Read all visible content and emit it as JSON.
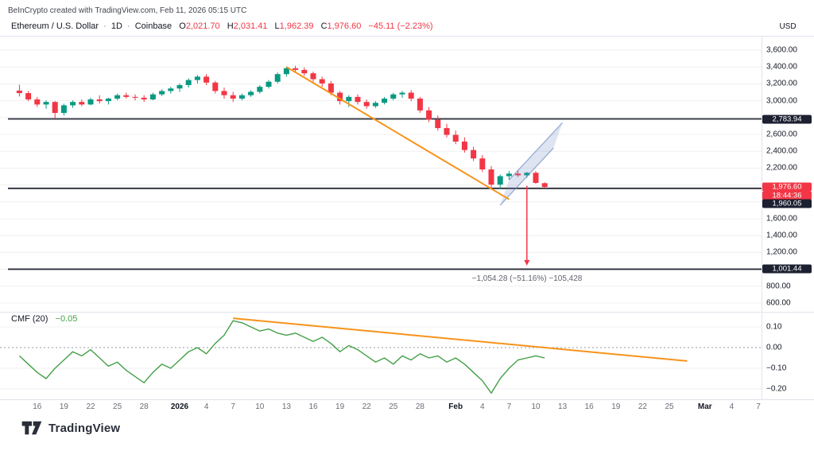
{
  "header": {
    "attribution": "BeInCrypto created with TradingView.com, Feb 11, 2026 05:15 UTC"
  },
  "legend": {
    "symbol": "Ethereum / U.S. Dollar",
    "separator": "·",
    "interval": "1D",
    "exchange": "Coinbase",
    "ohlc": [
      {
        "label": "O",
        "value": "2,021.70"
      },
      {
        "label": "H",
        "value": "2,031.41"
      },
      {
        "label": "L",
        "value": "1,962.39"
      },
      {
        "label": "C",
        "value": "1,976.60"
      }
    ],
    "change": "−45.11 (−2.23%)"
  },
  "price_axis": {
    "currency": "USD",
    "labels": [
      {
        "label": "3,600.00",
        "value": 3600
      },
      {
        "label": "3,400.00",
        "value": 3400
      },
      {
        "label": "3,200.00",
        "value": 3200
      },
      {
        "label": "3,000.00",
        "value": 3000
      },
      {
        "label": "2,600.00",
        "value": 2600
      },
      {
        "label": "2,400.00",
        "value": 2400
      },
      {
        "label": "2,200.00",
        "value": 2200
      },
      {
        "label": "1,600.00",
        "value": 1600
      },
      {
        "label": "1,400.00",
        "value": 1400
      },
      {
        "label": "1,200.00",
        "value": 1200
      },
      {
        "label": "800.00",
        "value": 800
      },
      {
        "label": "600.00",
        "value": 600
      }
    ],
    "badges": [
      {
        "label": "2,783.94",
        "price": 2783.94,
        "style": "dark"
      },
      {
        "label": "1,976.60",
        "price": 1976.6,
        "style": "red"
      },
      {
        "label": "18:44:36",
        "price": null,
        "style": "red"
      },
      {
        "label": "1,960.05",
        "price": 1960.05,
        "style": "dark"
      },
      {
        "label": "1,001.44",
        "price": 1001.44,
        "style": "dark"
      }
    ]
  },
  "time_axis": {
    "labels": [
      {
        "label": "16",
        "day": 2
      },
      {
        "label": "19",
        "day": 5
      },
      {
        "label": "22",
        "day": 8
      },
      {
        "label": "25",
        "day": 11
      },
      {
        "label": "28",
        "day": 14
      },
      {
        "label": "2026",
        "day": 18,
        "bold": true
      },
      {
        "label": "4",
        "day": 21
      },
      {
        "label": "7",
        "day": 24
      },
      {
        "label": "10",
        "day": 27
      },
      {
        "label": "13",
        "day": 30
      },
      {
        "label": "16",
        "day": 33
      },
      {
        "label": "19",
        "day": 36
      },
      {
        "label": "22",
        "day": 39
      },
      {
        "label": "25",
        "day": 42
      },
      {
        "label": "28",
        "day": 45
      },
      {
        "label": "Feb",
        "day": 49,
        "bold": true
      },
      {
        "label": "4",
        "day": 52
      },
      {
        "label": "7",
        "day": 55
      },
      {
        "label": "10",
        "day": 58
      },
      {
        "label": "13",
        "day": 61
      },
      {
        "label": "16",
        "day": 64
      },
      {
        "label": "19",
        "day": 67
      },
      {
        "label": "22",
        "day": 70
      },
      {
        "label": "25",
        "day": 73
      },
      {
        "label": "Mar",
        "day": 77,
        "bold": true
      },
      {
        "label": "4",
        "day": 80
      },
      {
        "label": "7",
        "day": 83
      }
    ]
  },
  "cmf": {
    "title": "CMF (20)",
    "value": "−0.05",
    "labels": [
      {
        "label": "0.10",
        "value": 0.1
      },
      {
        "label": "0.00",
        "value": 0
      },
      {
        "label": "−0.10",
        "value": -0.1
      },
      {
        "label": "−0.20",
        "value": -0.2
      }
    ]
  },
  "footer": {
    "brand": "TradingView"
  },
  "colors": {
    "up": "#089981",
    "down": "#f23645",
    "trend": "#f7931a",
    "channel_fill": "rgba(103,134,193,0.22)",
    "channel_line": "rgba(103,134,193,0.65)",
    "cmf_line": "#43a047",
    "ray": "#2a2e39",
    "grid": "rgba(42,46,57,0.07)",
    "zero_line": "#9598a1",
    "separator": "#e0e3eb",
    "badge_dark": "#1c2030",
    "badge_red": "#f23645"
  },
  "chart_data": [
    {
      "type": "candlestick",
      "title": "Ethereum / U.S. Dollar · 1D · Coinbase",
      "ylabel": "USD",
      "ylim": [
        600,
        3600
      ],
      "dates": [
        "2025-12-14",
        "2025-12-15",
        "2025-12-16",
        "2025-12-17",
        "2025-12-18",
        "2025-12-19",
        "2025-12-20",
        "2025-12-21",
        "2025-12-22",
        "2025-12-23",
        "2025-12-24",
        "2025-12-25",
        "2025-12-26",
        "2025-12-27",
        "2025-12-28",
        "2025-12-29",
        "2025-12-30",
        "2025-12-31",
        "2026-01-01",
        "2026-01-02",
        "2026-01-03",
        "2026-01-04",
        "2026-01-05",
        "2026-01-06",
        "2026-01-07",
        "2026-01-08",
        "2026-01-09",
        "2026-01-10",
        "2026-01-11",
        "2026-01-12",
        "2026-01-13",
        "2026-01-14",
        "2026-01-15",
        "2026-01-16",
        "2026-01-17",
        "2026-01-18",
        "2026-01-19",
        "2026-01-20",
        "2026-01-21",
        "2026-01-22",
        "2026-01-23",
        "2026-01-24",
        "2026-01-25",
        "2026-01-26",
        "2026-01-27",
        "2026-01-28",
        "2026-01-29",
        "2026-01-30",
        "2026-01-31",
        "2026-02-01",
        "2026-02-02",
        "2026-02-03",
        "2026-02-04",
        "2026-02-05",
        "2026-02-06",
        "2026-02-07",
        "2026-02-08",
        "2026-02-09",
        "2026-02-10",
        "2026-02-11"
      ],
      "ohlc": [
        [
          3120,
          3190,
          3050,
          3090
        ],
        [
          3090,
          3115,
          2995,
          3015
        ],
        [
          3015,
          3045,
          2925,
          2955
        ],
        [
          2955,
          3005,
          2905,
          2985
        ],
        [
          2985,
          2995,
          2795,
          2855
        ],
        [
          2855,
          2965,
          2825,
          2945
        ],
        [
          2945,
          3005,
          2915,
          2985
        ],
        [
          2985,
          3015,
          2935,
          2955
        ],
        [
          2955,
          3035,
          2945,
          3015
        ],
        [
          3015,
          3065,
          2965,
          2995
        ],
        [
          2995,
          3035,
          2955,
          3025
        ],
        [
          3025,
          3085,
          3005,
          3065
        ],
        [
          3065,
          3095,
          3025,
          3045
        ],
        [
          3045,
          3075,
          3005,
          3035
        ],
        [
          3035,
          3065,
          2985,
          3015
        ],
        [
          3015,
          3095,
          3005,
          3075
        ],
        [
          3075,
          3135,
          3055,
          3115
        ],
        [
          3115,
          3165,
          3085,
          3145
        ],
        [
          3145,
          3205,
          3105,
          3185
        ],
        [
          3185,
          3265,
          3155,
          3245
        ],
        [
          3245,
          3305,
          3205,
          3285
        ],
        [
          3285,
          3315,
          3185,
          3215
        ],
        [
          3215,
          3235,
          3085,
          3115
        ],
        [
          3115,
          3155,
          3025,
          3065
        ],
        [
          3065,
          3105,
          2985,
          3025
        ],
        [
          3025,
          3085,
          3005,
          3065
        ],
        [
          3065,
          3125,
          3045,
          3105
        ],
        [
          3105,
          3185,
          3085,
          3165
        ],
        [
          3165,
          3245,
          3145,
          3225
        ],
        [
          3225,
          3335,
          3205,
          3315
        ],
        [
          3315,
          3405,
          3285,
          3385
        ],
        [
          3385,
          3415,
          3335,
          3365
        ],
        [
          3365,
          3395,
          3295,
          3325
        ],
        [
          3325,
          3345,
          3225,
          3255
        ],
        [
          3255,
          3285,
          3165,
          3205
        ],
        [
          3205,
          3235,
          3065,
          3095
        ],
        [
          3095,
          3115,
          2955,
          2995
        ],
        [
          2995,
          3065,
          2925,
          3045
        ],
        [
          3045,
          3075,
          2955,
          2985
        ],
        [
          2985,
          3015,
          2905,
          2935
        ],
        [
          2935,
          2995,
          2915,
          2975
        ],
        [
          2975,
          3045,
          2955,
          3025
        ],
        [
          3025,
          3095,
          3005,
          3075
        ],
        [
          3075,
          3115,
          3035,
          3095
        ],
        [
          3095,
          3125,
          2995,
          3025
        ],
        [
          3025,
          3045,
          2855,
          2885
        ],
        [
          2885,
          2925,
          2745,
          2775
        ],
        [
          2775,
          2825,
          2645,
          2675
        ],
        [
          2675,
          2725,
          2565,
          2595
        ],
        [
          2595,
          2645,
          2485,
          2515
        ],
        [
          2515,
          2565,
          2385,
          2415
        ],
        [
          2415,
          2455,
          2285,
          2315
        ],
        [
          2315,
          2355,
          2155,
          2185
        ],
        [
          2185,
          2225,
          1962,
          2005
        ],
        [
          2005,
          2125,
          1955,
          2105
        ],
        [
          2105,
          2165,
          2065,
          2135
        ],
        [
          2135,
          2175,
          2095,
          2115
        ],
        [
          2115,
          2155,
          2085,
          2145
        ],
        [
          2145,
          2165,
          2015,
          2025
        ],
        [
          2021.7,
          2031.41,
          1962.39,
          1976.6
        ]
      ],
      "horizontal_lines": [
        2783.94,
        1960.05,
        1001.44
      ],
      "trendline": {
        "from": {
          "date": "2026-01-13",
          "price": 3400
        },
        "to": {
          "date": "2026-02-07",
          "price": 1830
        }
      },
      "channel": {
        "lower": [
          {
            "date": "2026-02-06",
            "price": 1760
          },
          {
            "date": "2026-02-12",
            "price": 2440
          }
        ],
        "upper": [
          {
            "date": "2026-02-07",
            "price": 2060
          },
          {
            "date": "2026-02-13",
            "price": 2740
          }
        ]
      },
      "arrow": {
        "date": "2026-02-09",
        "from_price": 1990,
        "to_price": 1045
      },
      "annotation": "−1,054.28 (−51.16%) −105,428"
    },
    {
      "type": "line",
      "title": "CMF (20)",
      "last_value": -0.05,
      "ylim": [
        -0.25,
        0.17
      ],
      "zero_line": "dashed",
      "grid_values": [
        0.1,
        -0.1,
        -0.2
      ],
      "values": [
        -0.04,
        -0.08,
        -0.12,
        -0.15,
        -0.1,
        -0.06,
        -0.02,
        -0.04,
        -0.01,
        -0.05,
        -0.09,
        -0.07,
        -0.11,
        -0.14,
        -0.17,
        -0.12,
        -0.08,
        -0.1,
        -0.06,
        -0.02,
        0,
        -0.03,
        0.02,
        0.06,
        0.13,
        0.12,
        0.1,
        0.08,
        0.09,
        0.07,
        0.06,
        0.07,
        0.05,
        0.03,
        0.05,
        0.02,
        -0.02,
        0.01,
        -0.01,
        -0.04,
        -0.07,
        -0.05,
        -0.08,
        -0.04,
        -0.06,
        -0.03,
        -0.05,
        -0.04,
        -0.07,
        -0.05,
        -0.08,
        -0.12,
        -0.16,
        -0.22,
        -0.15,
        -0.1,
        -0.06,
        -0.05,
        -0.04,
        -0.05
      ],
      "trendline": {
        "from": {
          "date": "2026-01-07",
          "value": 0.142
        },
        "to": {
          "date": "2026-02-27",
          "value": -0.065
        }
      }
    }
  ]
}
